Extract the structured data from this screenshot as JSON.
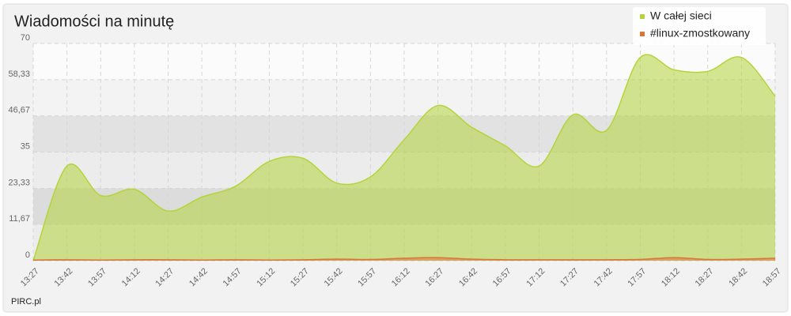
{
  "chart_data": {
    "type": "area",
    "title": "Wiadomości na minutę",
    "source": "PIRC.pl",
    "legend": "top-right",
    "grid": true,
    "categories": [
      "13:27",
      "13:42",
      "13:57",
      "14:12",
      "14:27",
      "14:42",
      "14:57",
      "15:12",
      "15:27",
      "15:42",
      "15:57",
      "16:12",
      "16:27",
      "16:42",
      "16:57",
      "17:12",
      "17:27",
      "17:42",
      "17:57",
      "18:12",
      "18:27",
      "18:42",
      "18:57"
    ],
    "series": [
      {
        "name": "W całej sieci",
        "color": "#b5d33a",
        "values": [
          0,
          30.5,
          21,
          23,
          16,
          20.5,
          24,
          32,
          33,
          25,
          27,
          39,
          50,
          43,
          37,
          30.5,
          47,
          42,
          65.5,
          61.5,
          61,
          65.5,
          53
        ]
      },
      {
        "name": "#linux-zmostkowany",
        "color": "#d8763a",
        "values": [
          0.2,
          0.3,
          0.2,
          0.3,
          0.3,
          0.2,
          0.3,
          0.2,
          0.3,
          0.5,
          0.4,
          0.8,
          1,
          0.5,
          0.3,
          0.3,
          0.3,
          0.3,
          0.4,
          1,
          0.4,
          0.5,
          0.8
        ]
      }
    ],
    "ylim": [
      0,
      70
    ],
    "yticks": [
      0,
      {
        "value": 11.67,
        "label": "11,67"
      },
      {
        "value": 23.33,
        "label": "23,33"
      },
      35,
      {
        "value": 46.67,
        "label": "46,67"
      },
      {
        "value": 58.33,
        "label": "58,33"
      },
      70
    ]
  }
}
